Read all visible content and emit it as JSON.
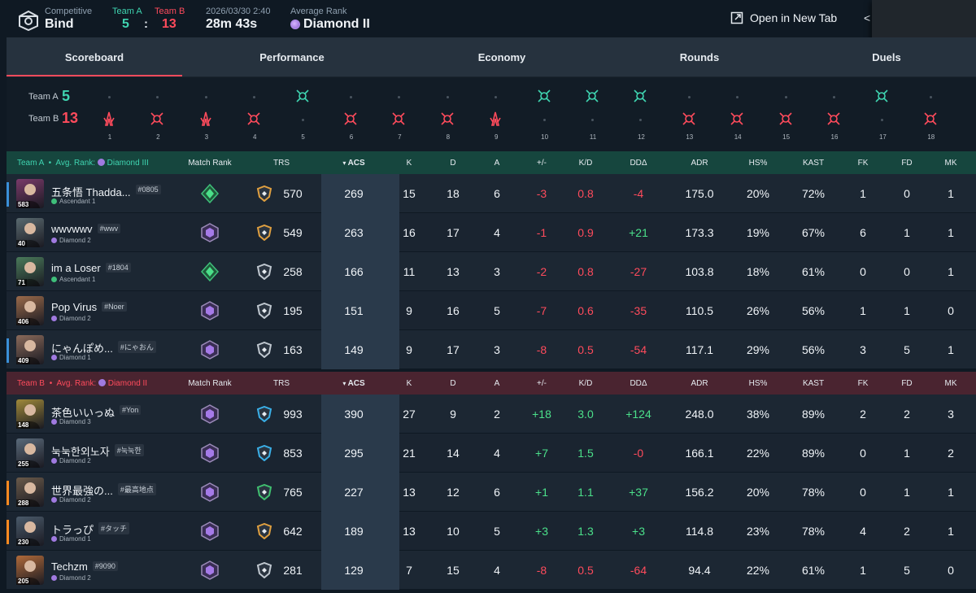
{
  "header": {
    "mode_label": "Competitive",
    "map": "Bind",
    "team_a_label": "Team A",
    "team_b_label": "Team B",
    "team_a_score": "5",
    "colon": ":",
    "team_b_score": "13",
    "date": "2026/03/30 2:40",
    "duration": "28m 43s",
    "avg_rank_label": "Average Rank",
    "avg_rank": "Diamond II",
    "open_tab": "Open in New Tab"
  },
  "tabs": [
    "Scoreboard",
    "Performance",
    "Economy",
    "Rounds",
    "Duels"
  ],
  "timeline": {
    "team_a_label": "Team A",
    "team_a_score": "5",
    "team_b_label": "Team B",
    "team_b_score": "13",
    "rounds": [
      {
        "n": "1",
        "winner": "B",
        "type": "elim"
      },
      {
        "n": "2",
        "winner": "B",
        "type": "defuse"
      },
      {
        "n": "3",
        "winner": "B",
        "type": "elim"
      },
      {
        "n": "4",
        "winner": "B",
        "type": "defuse"
      },
      {
        "n": "5",
        "winner": "A",
        "type": "defuse"
      },
      {
        "n": "6",
        "winner": "B",
        "type": "defuse"
      },
      {
        "n": "7",
        "winner": "B",
        "type": "defuse"
      },
      {
        "n": "8",
        "winner": "B",
        "type": "defuse"
      },
      {
        "n": "9",
        "winner": "B",
        "type": "elim"
      },
      {
        "n": "10",
        "winner": "A",
        "type": "defuse"
      },
      {
        "n": "11",
        "winner": "A",
        "type": "defuse"
      },
      {
        "n": "12",
        "winner": "A",
        "type": "defuse"
      },
      {
        "n": "13",
        "winner": "B",
        "type": "defuse"
      },
      {
        "n": "14",
        "winner": "B",
        "type": "defuse"
      },
      {
        "n": "15",
        "winner": "B",
        "type": "defuse"
      },
      {
        "n": "16",
        "winner": "B",
        "type": "defuse"
      },
      {
        "n": "17",
        "winner": "A",
        "type": "defuse"
      },
      {
        "n": "18",
        "winner": "B",
        "type": "defuse"
      }
    ]
  },
  "columns": [
    "Match Rank",
    "TRS",
    "ACS",
    "K",
    "D",
    "A",
    "+/-",
    "K/D",
    "DDΔ",
    "ADR",
    "HS%",
    "KAST",
    "FK",
    "FD",
    "MK"
  ],
  "team_a": {
    "label": "Team A",
    "dot": "•",
    "avg_rank_label": "Avg. Rank:",
    "avg_rank": "Diamond III",
    "players": [
      {
        "name": "五条悟 Thadda...",
        "tag": "#0805",
        "rank": "Ascendant 1",
        "level": "583",
        "trs": "570",
        "acs": "269",
        "k": "15",
        "d": "18",
        "a": "6",
        "pm": "-3",
        "kd": "0.8",
        "dd": "-4",
        "adr": "175.0",
        "hs": "20%",
        "kast": "72%",
        "fk": "1",
        "fd": "0",
        "mk": "1",
        "stripe": "#3a8fd8",
        "avatar": "#7a3a6a",
        "rk": "asc",
        "trs_color": "#e0a040"
      },
      {
        "name": "wwvwwv",
        "tag": "#wwv",
        "rank": "Diamond 2",
        "level": "40",
        "trs": "549",
        "acs": "263",
        "k": "16",
        "d": "17",
        "a": "4",
        "pm": "-1",
        "kd": "0.9",
        "dd": "+21",
        "adr": "173.3",
        "hs": "19%",
        "kast": "67%",
        "fk": "6",
        "fd": "1",
        "mk": "1",
        "stripe": "",
        "avatar": "#5a6a70",
        "rk": "dia",
        "trs_color": "#e0a040"
      },
      {
        "name": "im a Loser",
        "tag": "#1804",
        "rank": "Ascendant 1",
        "level": "71",
        "trs": "258",
        "acs": "166",
        "k": "11",
        "d": "13",
        "a": "3",
        "pm": "-2",
        "kd": "0.8",
        "dd": "-27",
        "adr": "103.8",
        "hs": "18%",
        "kast": "61%",
        "fk": "0",
        "fd": "0",
        "mk": "1",
        "stripe": "",
        "avatar": "#4a7a5a",
        "rk": "asc",
        "trs_color": "#c0c8d0"
      },
      {
        "name": "Pop Virus",
        "tag": "#Noer",
        "rank": "Diamond 2",
        "level": "406",
        "trs": "195",
        "acs": "151",
        "k": "9",
        "d": "16",
        "a": "5",
        "pm": "-7",
        "kd": "0.6",
        "dd": "-35",
        "adr": "110.5",
        "hs": "26%",
        "kast": "56%",
        "fk": "1",
        "fd": "1",
        "mk": "0",
        "stripe": "",
        "avatar": "#9a6a4a",
        "rk": "dia",
        "trs_color": "#c0c8d0"
      },
      {
        "name": "にゃんぽめ...",
        "tag": "#にゃおん",
        "rank": "Diamond 1",
        "level": "409",
        "trs": "163",
        "acs": "149",
        "k": "9",
        "d": "17",
        "a": "3",
        "pm": "-8",
        "kd": "0.5",
        "dd": "-54",
        "adr": "117.1",
        "hs": "29%",
        "kast": "56%",
        "fk": "3",
        "fd": "5",
        "mk": "1",
        "stripe": "#3a8fd8",
        "avatar": "#8a6a5a",
        "rk": "dia",
        "trs_color": "#c0c8d0"
      }
    ]
  },
  "team_b": {
    "label": "Team B",
    "dot": "•",
    "avg_rank_label": "Avg. Rank:",
    "avg_rank": "Diamond II",
    "players": [
      {
        "name": "茶色いいっぬ",
        "tag": "#Yon",
        "rank": "Diamond 3",
        "level": "148",
        "trs": "993",
        "acs": "390",
        "k": "27",
        "d": "9",
        "a": "2",
        "pm": "+18",
        "kd": "3.0",
        "dd": "+124",
        "adr": "248.0",
        "hs": "38%",
        "kast": "89%",
        "fk": "2",
        "fd": "2",
        "mk": "3",
        "stripe": "",
        "avatar": "#a08a3a",
        "rk": "dia",
        "trs_color": "#3ab0e8"
      },
      {
        "name": "눅눅한외노자",
        "tag": "#눅눅한",
        "rank": "Diamond 2",
        "level": "255",
        "trs": "853",
        "acs": "295",
        "k": "21",
        "d": "14",
        "a": "4",
        "pm": "+7",
        "kd": "1.5",
        "dd": "-0",
        "adr": "166.1",
        "hs": "22%",
        "kast": "89%",
        "fk": "0",
        "fd": "1",
        "mk": "2",
        "stripe": "",
        "avatar": "#5a6a7a",
        "rk": "dia",
        "trs_color": "#3ab0e8"
      },
      {
        "name": "世界最強の...",
        "tag": "#最高地点",
        "rank": "Diamond 2",
        "level": "288",
        "trs": "765",
        "acs": "227",
        "k": "13",
        "d": "12",
        "a": "6",
        "pm": "+1",
        "kd": "1.1",
        "dd": "+37",
        "adr": "156.2",
        "hs": "20%",
        "kast": "78%",
        "fk": "0",
        "fd": "1",
        "mk": "1",
        "stripe": "#ff8a20",
        "avatar": "#6a5a4a",
        "rk": "dia",
        "trs_color": "#40c070"
      },
      {
        "name": "トラっぴ",
        "tag": "#タッチ",
        "rank": "Diamond 1",
        "level": "230",
        "trs": "642",
        "acs": "189",
        "k": "13",
        "d": "10",
        "a": "5",
        "pm": "+3",
        "kd": "1.3",
        "dd": "+3",
        "adr": "114.8",
        "hs": "23%",
        "kast": "78%",
        "fk": "4",
        "fd": "2",
        "mk": "1",
        "stripe": "#ff8a20",
        "avatar": "#4a5a6a",
        "rk": "dia",
        "trs_color": "#e0a040"
      },
      {
        "name": "Techzm",
        "tag": "#9090",
        "rank": "Diamond 2",
        "level": "205",
        "trs": "281",
        "acs": "129",
        "k": "7",
        "d": "15",
        "a": "4",
        "pm": "-8",
        "kd": "0.5",
        "dd": "-64",
        "adr": "94.4",
        "hs": "22%",
        "kast": "61%",
        "fk": "1",
        "fd": "5",
        "mk": "0",
        "stripe": "",
        "avatar": "#b06a3a",
        "rk": "dia",
        "trs_color": "#c0c8d0"
      }
    ]
  },
  "colors": {
    "team_a": "#3fd4b0",
    "team_b": "#ff4b5c",
    "positive": "#4be08a",
    "negative": "#ff4b5c"
  }
}
